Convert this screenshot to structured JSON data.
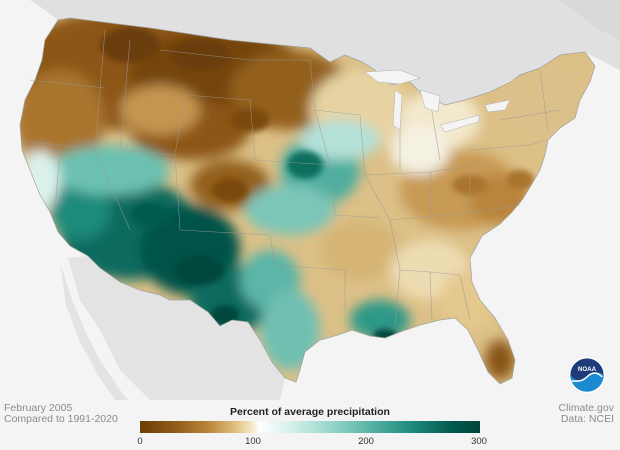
{
  "footer": {
    "date": "February 2005",
    "baseline": "Compared to 1991-2020",
    "source": "Climate.gov",
    "data_credit": "Data: NCEI"
  },
  "legend": {
    "title": "Percent of average precipitation",
    "ticks": [
      "0",
      "100",
      "200",
      "300"
    ],
    "colors": {
      "very_dry": "#6a3d07",
      "dry": "#b98439",
      "normal": "#ffffff",
      "wet": "#5cb7a9",
      "very_wet": "#00463c"
    }
  },
  "logo": {
    "text": "NOAA",
    "icon": "noaa-logo-icon"
  },
  "colors": {
    "land_background": "#e3e3e3",
    "ocean": "#f4f4f4",
    "state_border": "#9a9a9a"
  }
}
